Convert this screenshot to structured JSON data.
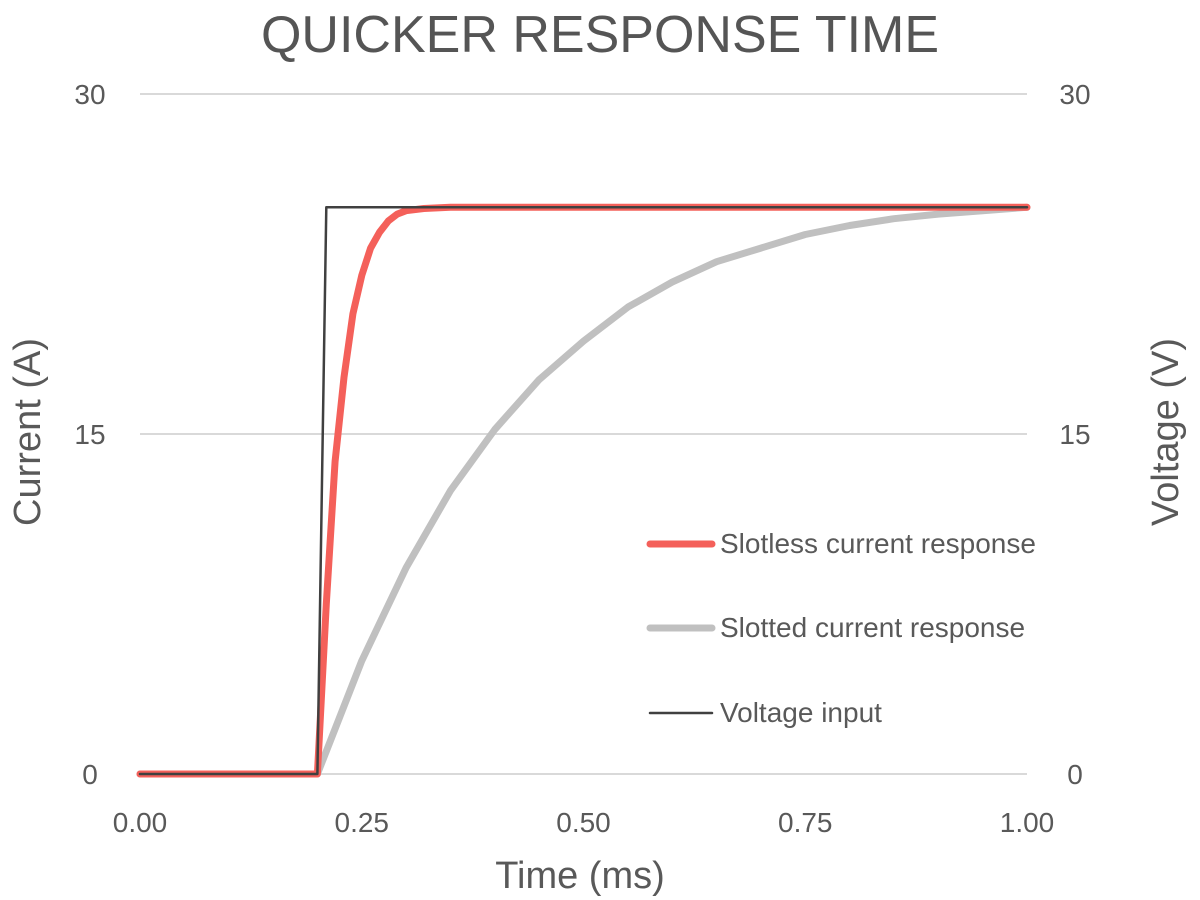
{
  "chart_data": {
    "type": "line",
    "title": "QUICKER RESPONSE TIME",
    "xlabel": "Time (ms)",
    "ylabel": "Current (A)",
    "y2label": "Voltage (V)",
    "xlim": [
      0,
      1
    ],
    "ylim": [
      0,
      30
    ],
    "y2lim": [
      0,
      30
    ],
    "x_ticks": [
      "0.00",
      "0.25",
      "0.50",
      "0.75",
      "1.00"
    ],
    "y_ticks": [
      "0",
      "15",
      "30"
    ],
    "y2_ticks": [
      "0",
      "15",
      "30"
    ],
    "grid": true,
    "legend_position": "right",
    "series": [
      {
        "name": "Slotless current response",
        "color": "#f4605a",
        "axis": "left",
        "x": [
          0,
          0.2,
          0.21,
          0.22,
          0.23,
          0.24,
          0.25,
          0.26,
          0.27,
          0.28,
          0.29,
          0.3,
          0.32,
          0.35,
          0.4,
          0.5,
          0.6,
          0.8,
          1.0
        ],
        "values": [
          0,
          0,
          7.5,
          13.8,
          17.5,
          20.3,
          22.0,
          23.2,
          23.9,
          24.4,
          24.7,
          24.85,
          24.95,
          25.0,
          25.0,
          25.0,
          25.0,
          25.0,
          25.0
        ]
      },
      {
        "name": "Slotted current response",
        "color": "#c0c0c0",
        "axis": "left",
        "x": [
          0,
          0.2,
          0.25,
          0.3,
          0.35,
          0.4,
          0.45,
          0.5,
          0.55,
          0.6,
          0.65,
          0.7,
          0.75,
          0.8,
          0.85,
          0.9,
          0.95,
          1.0
        ],
        "values": [
          0,
          0,
          5.0,
          9.1,
          12.5,
          15.2,
          17.4,
          19.1,
          20.6,
          21.7,
          22.6,
          23.2,
          23.8,
          24.2,
          24.5,
          24.7,
          24.85,
          25.0
        ]
      },
      {
        "name": "Voltage input",
        "color": "#404040",
        "axis": "right",
        "x": [
          0,
          0.2,
          0.21,
          1.0
        ],
        "values": [
          0,
          0,
          25,
          25
        ]
      }
    ]
  }
}
